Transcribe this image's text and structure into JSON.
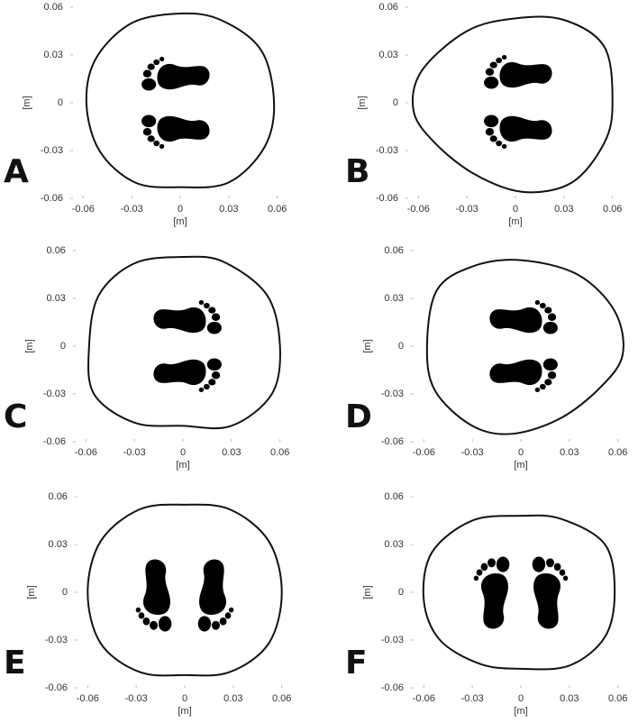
{
  "chart_data": [
    {
      "type": "line",
      "panel_label": "A",
      "xlabel": "[m]",
      "ylabel": "[m]",
      "xlim": [
        -0.068,
        0.068
      ],
      "ylim": [
        -0.06,
        0.06
      ],
      "xticks": [
        -0.06,
        -0.03,
        0,
        0.03,
        0.06
      ],
      "yticks": [
        -0.06,
        -0.03,
        0,
        0.03,
        0.06
      ],
      "series": [
        {
          "color": "#111111",
          "x": [
            0.058,
            0.05,
            0.025,
            0,
            -0.03,
            -0.052,
            -0.058,
            -0.05,
            -0.028,
            0,
            0.03,
            0.052
          ],
          "values": [
            0,
            0.033,
            0.052,
            0.056,
            0.05,
            0.028,
            0,
            -0.03,
            -0.05,
            -0.053,
            -0.05,
            -0.028
          ]
        }
      ]
    },
    {
      "type": "line",
      "panel_label": "B",
      "xlabel": "[m]",
      "ylabel": "[m]",
      "xlim": [
        -0.068,
        0.068
      ],
      "ylim": [
        -0.06,
        0.06
      ],
      "xticks": [
        -0.06,
        -0.03,
        0,
        0.03,
        0.06
      ],
      "yticks": [
        -0.06,
        -0.03,
        0,
        0.03,
        0.06
      ],
      "series": [
        {
          "color": "#111111",
          "x": [
            0.06,
            0.055,
            0.03,
            0,
            -0.03,
            -0.058,
            -0.063,
            -0.05,
            -0.025,
            0.005,
            0.035,
            0.055
          ],
          "values": [
            0,
            0.035,
            0.052,
            0.053,
            0.045,
            0.02,
            -0.005,
            -0.025,
            -0.045,
            -0.056,
            -0.05,
            -0.025
          ]
        }
      ]
    },
    {
      "type": "line",
      "panel_label": "C",
      "xlabel": "[m]",
      "ylabel": "[m]",
      "xlim": [
        -0.068,
        0.068
      ],
      "ylim": [
        -0.06,
        0.06
      ],
      "xticks": [
        -0.06,
        -0.03,
        0,
        0.03,
        0.06
      ],
      "yticks": [
        -0.06,
        -0.03,
        0,
        0.03,
        0.06
      ],
      "series": [
        {
          "color": "#111111",
          "x": [
            0.06,
            0.052,
            0.025,
            0,
            -0.03,
            -0.052,
            -0.058,
            -0.055,
            -0.03,
            0,
            0.03,
            0.055
          ],
          "values": [
            0,
            0.032,
            0.053,
            0.056,
            0.052,
            0.032,
            0,
            -0.03,
            -0.048,
            -0.05,
            -0.05,
            -0.03
          ]
        }
      ]
    },
    {
      "type": "line",
      "panel_label": "D",
      "xlabel": "[m]",
      "ylabel": "[m]",
      "xlim": [
        -0.068,
        0.068
      ],
      "ylim": [
        -0.06,
        0.06
      ],
      "xticks": [
        -0.06,
        -0.03,
        0,
        0.03,
        0.06
      ],
      "yticks": [
        -0.06,
        -0.03,
        0,
        0.03,
        0.06
      ],
      "series": [
        {
          "color": "#111111",
          "x": [
            0.063,
            0.058,
            0.035,
            0,
            -0.03,
            -0.052,
            -0.058,
            -0.053,
            -0.03,
            -0.005,
            0.025,
            0.05
          ],
          "values": [
            -0.005,
            0.022,
            0.045,
            0.054,
            0.05,
            0.035,
            0,
            -0.028,
            -0.05,
            -0.055,
            -0.045,
            -0.025
          ]
        }
      ]
    },
    {
      "type": "line",
      "panel_label": "E",
      "xlabel": "[m]",
      "ylabel": "[m]",
      "xlim": [
        -0.068,
        0.068
      ],
      "ylim": [
        -0.06,
        0.06
      ],
      "xticks": [
        -0.06,
        -0.03,
        0,
        0.03,
        0.06
      ],
      "yticks": [
        -0.06,
        -0.03,
        0,
        0.03,
        0.06
      ],
      "series": [
        {
          "color": "#111111",
          "x": [
            0.06,
            0.052,
            0.028,
            0,
            -0.028,
            -0.052,
            -0.06,
            -0.052,
            -0.028,
            0,
            0.028,
            0.052
          ],
          "values": [
            0,
            0.032,
            0.052,
            0.055,
            0.052,
            0.032,
            0,
            -0.032,
            -0.05,
            -0.052,
            -0.05,
            -0.032
          ]
        }
      ]
    },
    {
      "type": "line",
      "panel_label": "F",
      "xlabel": "[m]",
      "ylabel": "[m]",
      "xlim": [
        -0.068,
        0.068
      ],
      "ylim": [
        -0.06,
        0.06
      ],
      "xticks": [
        -0.06,
        -0.03,
        0,
        0.03,
        0.06
      ],
      "yticks": [
        -0.06,
        -0.03,
        0,
        0.03,
        0.06
      ],
      "series": [
        {
          "color": "#111111",
          "x": [
            0.058,
            0.052,
            0.025,
            0,
            -0.03,
            -0.055,
            -0.06,
            -0.05,
            -0.025,
            0,
            0.03,
            0.052
          ],
          "values": [
            0,
            0.03,
            0.046,
            0.048,
            0.045,
            0.025,
            -0.005,
            -0.03,
            -0.045,
            -0.048,
            -0.046,
            -0.028
          ]
        }
      ]
    }
  ]
}
